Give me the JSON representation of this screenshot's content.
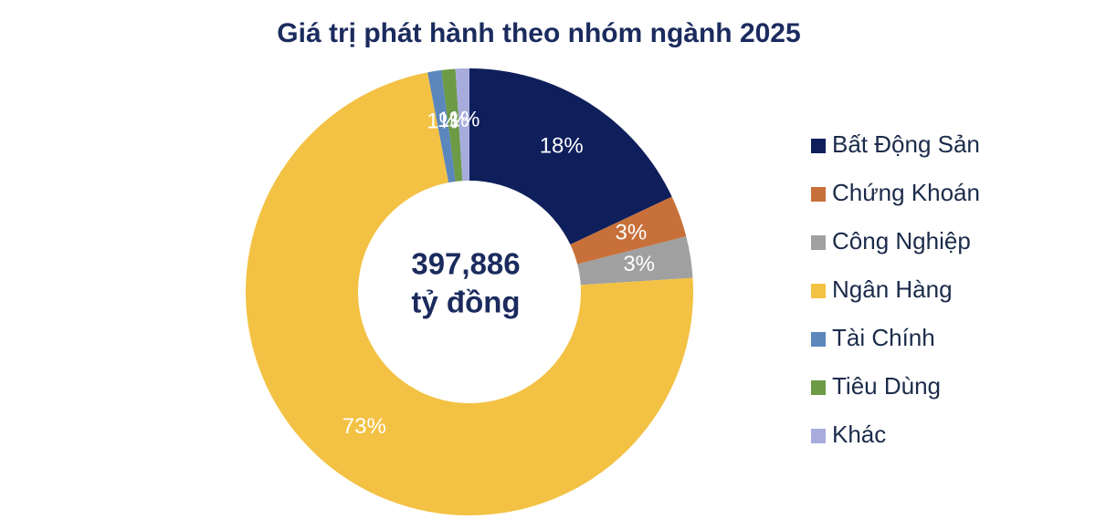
{
  "chart_data": {
    "type": "donut",
    "title": "Giá trị phát hành theo nhóm ngành 2025",
    "center_text": [
      "397,886",
      "tỷ đồng"
    ],
    "categories": [
      "Bất Động Sản",
      "Chứng Khoán",
      "Công Nghiệp",
      "Ngân Hàng",
      "Tài Chính",
      "Tiêu Dùng",
      "Khác"
    ],
    "values": [
      18,
      3,
      3,
      73,
      1,
      1,
      1
    ],
    "value_labels": [
      "18%",
      "3%",
      "3%",
      "73%",
      "1%",
      "1%",
      "1%"
    ],
    "colors": [
      "#0f1f5c",
      "#c8703a",
      "#a0a0a0",
      "#f3c244",
      "#5b87bd",
      "#6c9a45",
      "#a7acdc"
    ],
    "legend": "right"
  }
}
